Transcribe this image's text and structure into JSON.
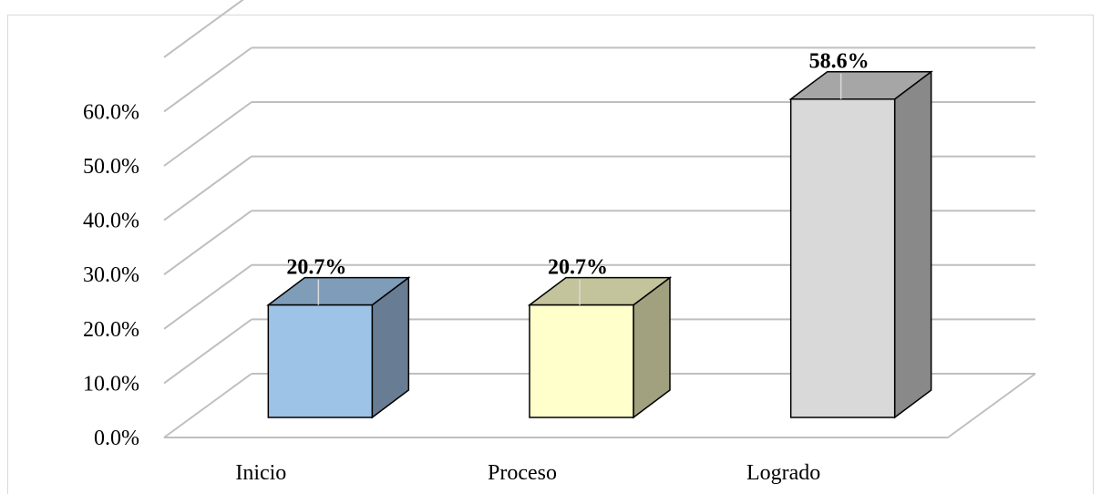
{
  "chart_data": {
    "type": "bar",
    "categories": [
      "Inicio",
      "Proceso",
      "Logrado"
    ],
    "values": [
      20.7,
      20.7,
      58.6
    ],
    "data_labels": [
      "20.7%",
      "20.7%",
      "58.6%"
    ],
    "y_ticks": [
      "0.0%",
      "10.0%",
      "20.0%",
      "30.0%",
      "40.0%",
      "50.0%",
      "60.0%"
    ],
    "ylim": [
      0,
      60
    ],
    "grid": true,
    "three_d": true,
    "title": "",
    "xlabel": "",
    "ylabel": "",
    "bar_colors": [
      {
        "front": "#9dc3e6",
        "top": "#7f9cb9",
        "side": "#687c94"
      },
      {
        "front": "#ffffcc",
        "top": "#c3c39c",
        "side": "#a1a180"
      },
      {
        "front": "#d9d9d9",
        "top": "#a6a6a6",
        "side": "#898989"
      }
    ],
    "gridline_color": "#bfbfbf"
  }
}
